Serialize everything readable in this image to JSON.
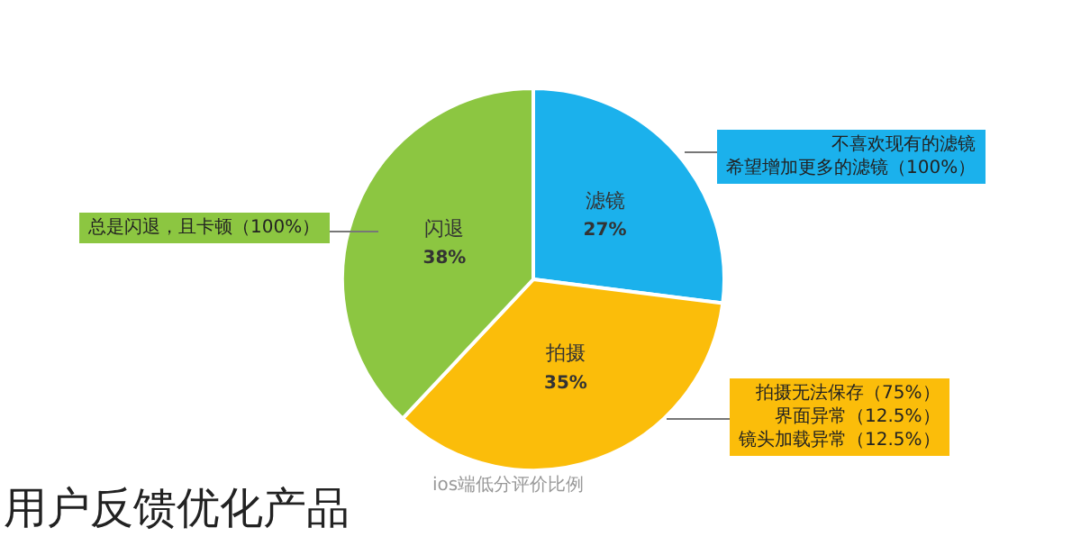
{
  "chart_data": {
    "type": "pie",
    "title": "用户反馈优化产品",
    "subtitle": "ios端低分评价比例",
    "categories": [
      "滤镜",
      "拍摄",
      "闪退"
    ],
    "values": [
      27,
      35,
      38
    ],
    "colors": [
      "#1bb1ec",
      "#fbbd0a",
      "#8cc641"
    ],
    "value_labels": [
      "27%",
      "35%",
      "38%"
    ],
    "annotations": [
      "不喜欢现有的滤镜",
      "希望增加更多的滤镜（100%）",
      "拍摄无法保存（75%）",
      "界面异常（12.5%）",
      "镜头加载异常（12.5%）",
      "总是闪退，且卡顿（100%）"
    ]
  }
}
